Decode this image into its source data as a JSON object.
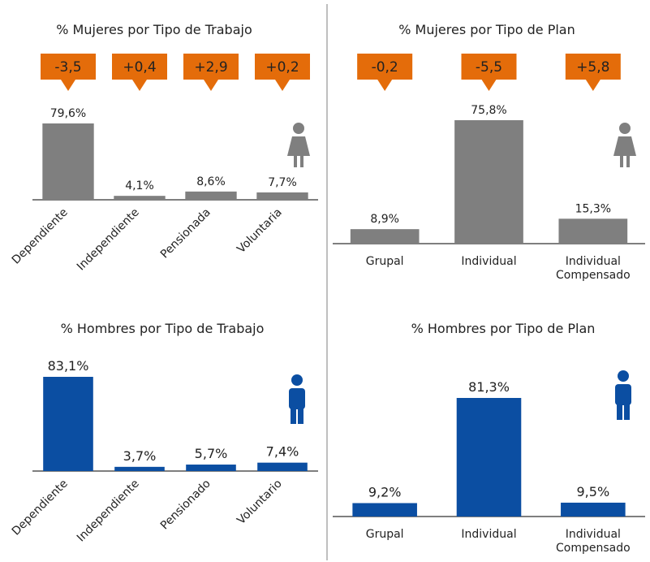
{
  "chart_data": [
    {
      "type": "bar",
      "title": "% Mujeres por Tipo de Trabajo",
      "categories": [
        "Dependiente",
        "Independiente",
        "Pensionada",
        "Voluntaria"
      ],
      "values": [
        79.6,
        4.1,
        8.6,
        7.7
      ],
      "value_labels": [
        "79,6%",
        "4,1%",
        "8,6%",
        "7,7%"
      ],
      "annotations": [
        "-3,5",
        "+0,4",
        "+2,9",
        "+0,2"
      ],
      "color": "#7f7f7f",
      "label_color": "#555555",
      "annotation_color": "#e46c0a"
    },
    {
      "type": "bar",
      "title": "% Mujeres por Tipo de Plan",
      "categories": [
        "Grupal",
        "Individual",
        "Individual Compensado"
      ],
      "values": [
        8.9,
        75.8,
        15.3
      ],
      "value_labels": [
        "8,9%",
        "75,8%",
        "15,3%"
      ],
      "annotations": [
        "-0,2",
        "-5,5",
        "+5,8"
      ],
      "color": "#7f7f7f",
      "label_color": "#555555",
      "annotation_color": "#e46c0a"
    },
    {
      "type": "bar",
      "title": "% Hombres por Tipo de Trabajo",
      "categories": [
        "Dependiente",
        "Independiente",
        "Pensionado",
        "Voluntario"
      ],
      "values": [
        83.1,
        3.7,
        5.7,
        7.4
      ],
      "value_labels": [
        "83,1%",
        "3,7%",
        "5,7%",
        "7,4%"
      ],
      "color": "#0b4ea2",
      "label_color": "#1f5fb0"
    },
    {
      "type": "bar",
      "title": "% Hombres por Tipo de Plan",
      "categories": [
        "Grupal",
        "Individual",
        "Individual Compensado"
      ],
      "values": [
        9.2,
        81.3,
        9.5
      ],
      "value_labels": [
        "9,2%",
        "81,3%",
        "9,5%"
      ],
      "color": "#0b4ea2",
      "label_color": "#1f5fb0"
    }
  ]
}
